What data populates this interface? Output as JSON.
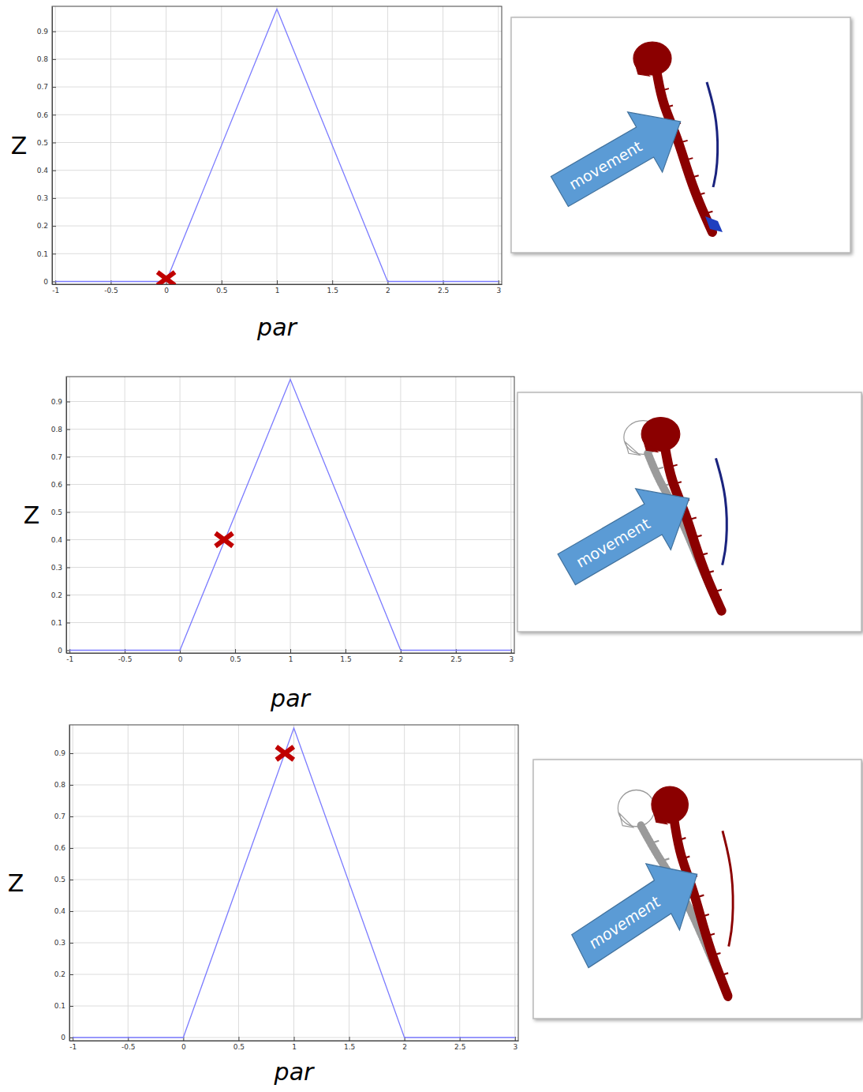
{
  "chart_data": [
    {
      "type": "line",
      "x_label": "par",
      "y_label": "Z",
      "annotation": "movement",
      "xlim": [
        -1.03,
        3.03
      ],
      "ylim": [
        -0.01,
        0.99
      ],
      "xticks": [
        -1,
        -0.5,
        0,
        0.5,
        1,
        1.5,
        2,
        2.5,
        3
      ],
      "yticks": [
        0,
        0.1,
        0.2,
        0.3,
        0.4,
        0.5,
        0.6,
        0.7,
        0.8,
        0.9
      ],
      "grid": true,
      "series": [
        {
          "type": "line",
          "color": "#7b7bff",
          "x": [
            -1,
            0,
            1,
            2,
            3
          ],
          "values": [
            0,
            0,
            0.98,
            0,
            0
          ]
        },
        {
          "type": "scatter",
          "marker": "x",
          "color": "#c00000",
          "x": [
            0
          ],
          "values": [
            0.01
          ]
        }
      ]
    },
    {
      "type": "line",
      "x_label": "par",
      "y_label": "Z",
      "annotation": "movement",
      "xlim": [
        -1.03,
        3.03
      ],
      "ylim": [
        -0.01,
        0.99
      ],
      "xticks": [
        -1,
        -0.5,
        0,
        0.5,
        1,
        1.5,
        2,
        2.5,
        3
      ],
      "yticks": [
        0,
        0.1,
        0.2,
        0.3,
        0.4,
        0.5,
        0.6,
        0.7,
        0.8,
        0.9
      ],
      "grid": true,
      "series": [
        {
          "type": "line",
          "color": "#7b7bff",
          "x": [
            -1,
            0,
            1,
            2,
            3
          ],
          "values": [
            0,
            0,
            0.98,
            0,
            0
          ]
        },
        {
          "type": "scatter",
          "marker": "x",
          "color": "#c00000",
          "x": [
            0.4
          ],
          "values": [
            0.4
          ]
        }
      ]
    },
    {
      "type": "line",
      "x_label": "par",
      "y_label": "Z",
      "annotation": "movement",
      "xlim": [
        -1.03,
        3.03
      ],
      "ylim": [
        -0.01,
        0.99
      ],
      "xticks": [
        -1,
        -0.5,
        0,
        0.5,
        1,
        1.5,
        2,
        2.5,
        3
      ],
      "yticks": [
        0,
        0.1,
        0.2,
        0.3,
        0.4,
        0.5,
        0.6,
        0.7,
        0.8,
        0.9
      ],
      "grid": true,
      "series": [
        {
          "type": "line",
          "color": "#7b7bff",
          "x": [
            -1,
            0,
            1,
            2,
            3
          ],
          "values": [
            0,
            0,
            0.98,
            0,
            0
          ]
        },
        {
          "type": "scatter",
          "marker": "x",
          "color": "#c00000",
          "x": [
            0.92
          ],
          "values": [
            0.9
          ]
        }
      ]
    }
  ]
}
